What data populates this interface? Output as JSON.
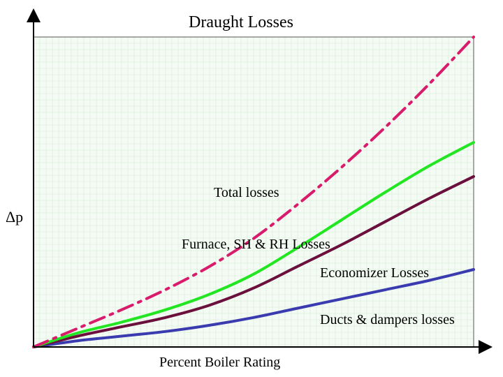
{
  "chart_data": {
    "type": "line",
    "title": "Draught Losses",
    "xlabel": "Percent Boiler Rating",
    "ylabel": "Δp",
    "xlim": [
      0,
      100
    ],
    "ylim": [
      0,
      100
    ],
    "grid": true,
    "series": [
      {
        "name": "Total losses",
        "color": "#d81b6a",
        "dash": "dashdot",
        "x": [
          0,
          10,
          20,
          30,
          40,
          50,
          60,
          70,
          80,
          90,
          100
        ],
        "y": [
          0,
          6,
          12,
          18.5,
          26,
          35,
          46,
          58,
          71,
          85,
          100
        ]
      },
      {
        "name": "Furnace, SH & RH Losses",
        "color": "#22e622",
        "dash": "solid",
        "x": [
          0,
          10,
          20,
          30,
          40,
          50,
          60,
          70,
          80,
          90,
          100
        ],
        "y": [
          0,
          4.5,
          8,
          12,
          17,
          23.5,
          32,
          41,
          50,
          58.5,
          66
        ]
      },
      {
        "name": "Economizer  Losses",
        "color": "#6b0f3c",
        "dash": "solid",
        "x": [
          0,
          10,
          20,
          30,
          40,
          50,
          60,
          70,
          80,
          90,
          100
        ],
        "y": [
          0,
          3.5,
          6.5,
          9.5,
          13.5,
          19,
          26,
          33,
          40.5,
          48,
          55
        ]
      },
      {
        "name": "Ducts & dampers losses",
        "color": "#3b3bb0",
        "dash": "solid",
        "x": [
          0,
          10,
          20,
          30,
          40,
          50,
          60,
          70,
          80,
          90,
          100
        ],
        "y": [
          0,
          2,
          3.5,
          5,
          7,
          9.5,
          12.5,
          15.5,
          18.5,
          21.5,
          25
        ]
      }
    ]
  }
}
